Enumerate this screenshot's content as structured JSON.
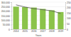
{
  "chart_data": {
    "type": "bar",
    "x_label": "Years",
    "categories": [
      "2014",
      "2015",
      "2016",
      "2017",
      "2018",
      "2019"
    ],
    "series": [
      {
        "type": "bar",
        "color": "#8bc34a",
        "values": [
          250000,
          245000,
          240000,
          225000,
          210000,
          190000
        ]
      },
      {
        "type": "line",
        "color": "#555555",
        "axis": "y2",
        "values": [
          225,
          205,
          190,
          180,
          170,
          145
        ]
      }
    ],
    "ylim": [
      0,
      300000
    ],
    "yticks": [
      {
        "value": 0,
        "label": "0"
      },
      {
        "value": 50000,
        "label": "50,000"
      },
      {
        "value": 100000,
        "label": "100,000"
      },
      {
        "value": 150000,
        "label": "150,000"
      },
      {
        "value": 200000,
        "label": "200,000"
      },
      {
        "value": 250000,
        "label": "250,000"
      },
      {
        "value": 300000,
        "label": "300,000"
      }
    ],
    "y2lim": [
      0,
      250
    ],
    "y2ticks": [
      0,
      50,
      100,
      150,
      200,
      250
    ],
    "grid": true
  }
}
